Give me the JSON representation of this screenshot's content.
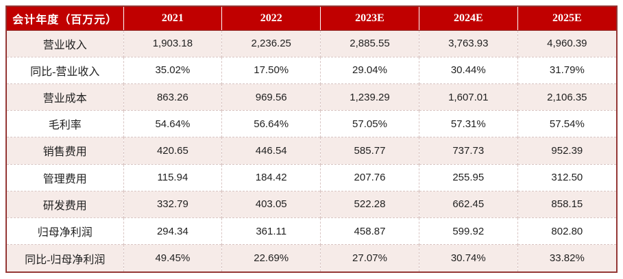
{
  "table": {
    "columns": [
      "会计年度（百万元）",
      "2021",
      "2022",
      "2023E",
      "2024E",
      "2025E"
    ],
    "rows": [
      {
        "label": "营业收入",
        "values": [
          "1,903.18",
          "2,236.25",
          "2,885.55",
          "3,763.93",
          "4,960.39"
        ]
      },
      {
        "label": "同比-营业收入",
        "values": [
          "35.02%",
          "17.50%",
          "29.04%",
          "30.44%",
          "31.79%"
        ]
      },
      {
        "label": "营业成本",
        "values": [
          "863.26",
          "969.56",
          "1,239.29",
          "1,607.01",
          "2,106.35"
        ]
      },
      {
        "label": "毛利率",
        "values": [
          "54.64%",
          "56.64%",
          "57.05%",
          "57.31%",
          "57.54%"
        ]
      },
      {
        "label": "销售费用",
        "values": [
          "420.65",
          "446.54",
          "585.77",
          "737.73",
          "952.39"
        ]
      },
      {
        "label": "管理费用",
        "values": [
          "115.94",
          "184.42",
          "207.76",
          "255.95",
          "312.50"
        ]
      },
      {
        "label": "研发费用",
        "values": [
          "332.79",
          "403.05",
          "522.28",
          "662.45",
          "858.15"
        ]
      },
      {
        "label": "归母净利润",
        "values": [
          "294.34",
          "361.11",
          "458.87",
          "599.92",
          "802.80"
        ]
      },
      {
        "label": "同比-归母净利润",
        "values": [
          "49.45%",
          "22.69%",
          "27.07%",
          "30.74%",
          "33.82%"
        ]
      }
    ]
  },
  "chart_data": {
    "type": "table",
    "title": "会计年度（百万元）财务预测表",
    "columns": [
      "会计年度（百万元）",
      "2021",
      "2022",
      "2023E",
      "2024E",
      "2025E"
    ],
    "rows": [
      [
        "营业收入",
        1903.18,
        2236.25,
        2885.55,
        3763.93,
        4960.39
      ],
      [
        "同比-营业收入",
        "35.02%",
        "17.50%",
        "29.04%",
        "30.44%",
        "31.79%"
      ],
      [
        "营业成本",
        863.26,
        969.56,
        1239.29,
        1607.01,
        2106.35
      ],
      [
        "毛利率",
        "54.64%",
        "56.64%",
        "57.05%",
        "57.31%",
        "57.54%"
      ],
      [
        "销售费用",
        420.65,
        446.54,
        585.77,
        737.73,
        952.39
      ],
      [
        "管理费用",
        115.94,
        184.42,
        207.76,
        255.95,
        312.5
      ],
      [
        "研发费用",
        332.79,
        403.05,
        522.28,
        662.45,
        858.15
      ],
      [
        "归母净利润",
        294.34,
        361.11,
        458.87,
        599.92,
        802.8
      ],
      [
        "同比-归母净利润",
        "49.45%",
        "22.69%",
        "27.07%",
        "30.74%",
        "33.82%"
      ]
    ],
    "unit": "百万元",
    "layout": {
      "banded_rows": true,
      "grid": "dashed"
    }
  },
  "colors": {
    "header_bg": "#C00000",
    "header_text": "#FFFFFF",
    "band_pink": "#F6EBE8",
    "band_white": "#FFFFFF",
    "outer_border": "#943634",
    "grid_dashed": "#D8C4C2",
    "body_text": "#1F1F1F"
  }
}
